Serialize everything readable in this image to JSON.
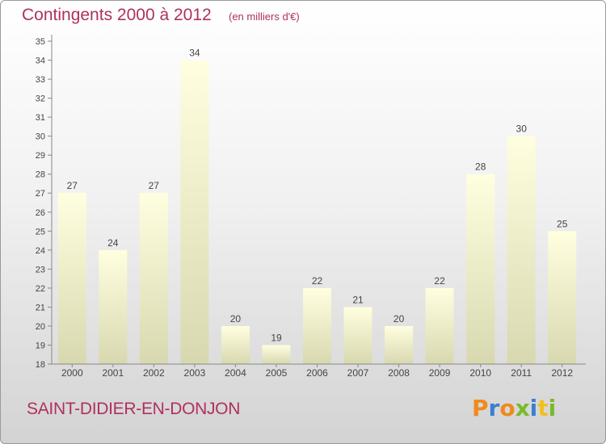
{
  "header": {
    "title": "Contingents 2000 à 2012",
    "subtitle": "(en milliers d'€)"
  },
  "footer": {
    "commune": "SAINT-DIDIER-EN-DONJON",
    "logo_text": "Proxiti"
  },
  "colors": {
    "accent": "#b03060",
    "bar_top": "#ffffe0",
    "bar_bottom": "#d8d8b0",
    "logo_letters": [
      "#f08a1c",
      "#3a7fd0",
      "#f08a1c",
      "#7aba2a",
      "#3a7fd0",
      "#f0c020",
      "#7aba2a"
    ]
  },
  "chart_data": {
    "type": "bar",
    "categories": [
      "2000",
      "2001",
      "2002",
      "2003",
      "2004",
      "2005",
      "2006",
      "2007",
      "2008",
      "2009",
      "2010",
      "2011",
      "2012"
    ],
    "values": [
      27,
      24,
      27,
      34,
      20,
      19,
      22,
      21,
      20,
      22,
      28,
      30,
      25
    ],
    "data_labels": [
      "27",
      "24",
      "27",
      "34",
      "20",
      "19",
      "22",
      "21",
      "20",
      "22",
      "28",
      "30",
      "25"
    ],
    "yticks": [
      "18",
      "19",
      "20",
      "21",
      "22",
      "23",
      "24",
      "25",
      "26",
      "27",
      "28",
      "29",
      "30",
      "31",
      "32",
      "33",
      "34",
      "35"
    ],
    "ylim": [
      18,
      35
    ],
    "grid": false
  }
}
